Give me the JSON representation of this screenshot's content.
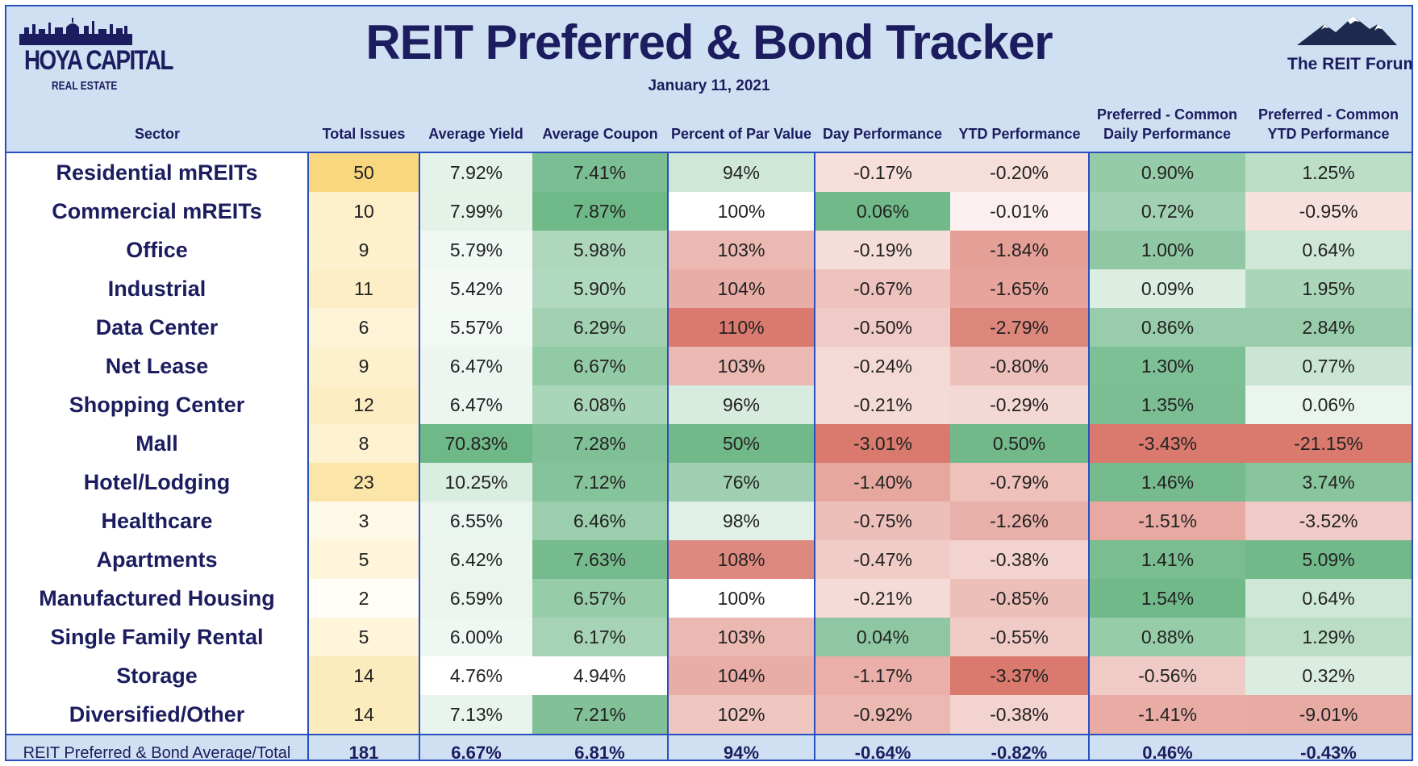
{
  "title": "REIT Preferred & Bond Tracker",
  "date": "January 11, 2021",
  "logos": {
    "left_brand": "HOYA CAPITAL",
    "left_sub": "REAL ESTATE",
    "right_brand": "The REIT Forum"
  },
  "columns": [
    "Sector",
    "Total Issues",
    "Average Yield",
    "Average Coupon",
    "Percent of Par Value",
    "Day Performance",
    "YTD Performance",
    "Preferred - Common Daily Performance",
    "Preferred - Common YTD Performance"
  ],
  "rows": [
    {
      "sector": "Residential mREITs",
      "issues": "50",
      "yield": "7.92%",
      "coupon": "7.41%",
      "par": "94%",
      "day": "-0.17%",
      "ytd": "-0.20%",
      "pc_daily": "0.90%",
      "pc_ytd": "1.25%"
    },
    {
      "sector": "Commercial mREITs",
      "issues": "10",
      "yield": "7.99%",
      "coupon": "7.87%",
      "par": "100%",
      "day": "0.06%",
      "ytd": "-0.01%",
      "pc_daily": "0.72%",
      "pc_ytd": "-0.95%"
    },
    {
      "sector": "Office",
      "issues": "9",
      "yield": "5.79%",
      "coupon": "5.98%",
      "par": "103%",
      "day": "-0.19%",
      "ytd": "-1.84%",
      "pc_daily": "1.00%",
      "pc_ytd": "0.64%"
    },
    {
      "sector": "Industrial",
      "issues": "11",
      "yield": "5.42%",
      "coupon": "5.90%",
      "par": "104%",
      "day": "-0.67%",
      "ytd": "-1.65%",
      "pc_daily": "0.09%",
      "pc_ytd": "1.95%"
    },
    {
      "sector": "Data Center",
      "issues": "6",
      "yield": "5.57%",
      "coupon": "6.29%",
      "par": "110%",
      "day": "-0.50%",
      "ytd": "-2.79%",
      "pc_daily": "0.86%",
      "pc_ytd": "2.84%"
    },
    {
      "sector": "Net Lease",
      "issues": "9",
      "yield": "6.47%",
      "coupon": "6.67%",
      "par": "103%",
      "day": "-0.24%",
      "ytd": "-0.80%",
      "pc_daily": "1.30%",
      "pc_ytd": "0.77%"
    },
    {
      "sector": "Shopping Center",
      "issues": "12",
      "yield": "6.47%",
      "coupon": "6.08%",
      "par": "96%",
      "day": "-0.21%",
      "ytd": "-0.29%",
      "pc_daily": "1.35%",
      "pc_ytd": "0.06%"
    },
    {
      "sector": "Mall",
      "issues": "8",
      "yield": "70.83%",
      "coupon": "7.28%",
      "par": "50%",
      "day": "-3.01%",
      "ytd": "0.50%",
      "pc_daily": "-3.43%",
      "pc_ytd": "-21.15%"
    },
    {
      "sector": "Hotel/Lodging",
      "issues": "23",
      "yield": "10.25%",
      "coupon": "7.12%",
      "par": "76%",
      "day": "-1.40%",
      "ytd": "-0.79%",
      "pc_daily": "1.46%",
      "pc_ytd": "3.74%"
    },
    {
      "sector": "Healthcare",
      "issues": "3",
      "yield": "6.55%",
      "coupon": "6.46%",
      "par": "98%",
      "day": "-0.75%",
      "ytd": "-1.26%",
      "pc_daily": "-1.51%",
      "pc_ytd": "-3.52%"
    },
    {
      "sector": "Apartments",
      "issues": "5",
      "yield": "6.42%",
      "coupon": "7.63%",
      "par": "108%",
      "day": "-0.47%",
      "ytd": "-0.38%",
      "pc_daily": "1.41%",
      "pc_ytd": "5.09%"
    },
    {
      "sector": "Manufactured Housing",
      "issues": "2",
      "yield": "6.59%",
      "coupon": "6.57%",
      "par": "100%",
      "day": "-0.21%",
      "ytd": "-0.85%",
      "pc_daily": "1.54%",
      "pc_ytd": "0.64%"
    },
    {
      "sector": "Single Family Rental",
      "issues": "5",
      "yield": "6.00%",
      "coupon": "6.17%",
      "par": "103%",
      "day": "0.04%",
      "ytd": "-0.55%",
      "pc_daily": "0.88%",
      "pc_ytd": "1.29%"
    },
    {
      "sector": "Storage",
      "issues": "14",
      "yield": "4.76%",
      "coupon": "4.94%",
      "par": "104%",
      "day": "-1.17%",
      "ytd": "-3.37%",
      "pc_daily": "-0.56%",
      "pc_ytd": "0.32%"
    },
    {
      "sector": "Diversified/Other",
      "issues": "14",
      "yield": "7.13%",
      "coupon": "7.21%",
      "par": "102%",
      "day": "-0.92%",
      "ytd": "-0.38%",
      "pc_daily": "-1.41%",
      "pc_ytd": "-9.01%"
    }
  ],
  "total": {
    "sector": "REIT Preferred & Bond Average/Total",
    "issues": "181",
    "yield": "6.67%",
    "coupon": "6.81%",
    "par": "94%",
    "day": "-0.64%",
    "ytd": "-0.82%",
    "pc_daily": "0.46%",
    "pc_ytd": "-0.43%"
  },
  "colors": {
    "header_bg": "#cfe0f2",
    "border": "#2a4fbf",
    "title_text": "#1c1d5e",
    "issues_high": "#f9d77e",
    "good_strong": "#6fb888",
    "bad_strong": "#d9776b"
  }
}
